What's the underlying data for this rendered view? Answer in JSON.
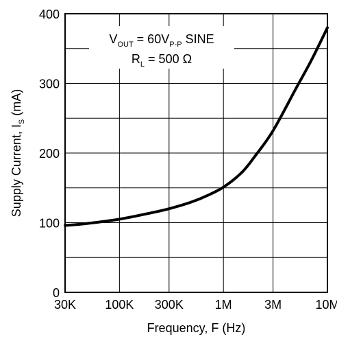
{
  "chart_data": {
    "type": "line",
    "xscale": "log",
    "xlim": [
      30000,
      10000000
    ],
    "ylim": [
      0,
      400
    ],
    "grid": true,
    "x_ticks": [
      {
        "value": 30000,
        "label": "30K"
      },
      {
        "value": 100000,
        "label": "100K"
      },
      {
        "value": 300000,
        "label": "300K"
      },
      {
        "value": 1000000,
        "label": "1M"
      },
      {
        "value": 3000000,
        "label": "3M"
      },
      {
        "value": 10000000,
        "label": "10M"
      }
    ],
    "y_ticks": [
      {
        "value": 0,
        "label": "0"
      },
      {
        "value": 100,
        "label": "100"
      },
      {
        "value": 200,
        "label": "200"
      },
      {
        "value": 300,
        "label": "300"
      },
      {
        "value": 400,
        "label": "400"
      }
    ],
    "xlabel": "Frequency, F (Hz)",
    "ylabel": {
      "main": "Supply Current, I",
      "sub": "S",
      "unit": " (mA)"
    },
    "annotation": {
      "line1": {
        "pre": "V",
        "sub": "OUT",
        "mid": " = 60V",
        "sub2": "P-P",
        "post": " SINE"
      },
      "line2": {
        "pre": "R",
        "sub": "L",
        "post": " = 500 Ω"
      }
    },
    "series": [
      {
        "x": [
          30000,
          50000,
          100000,
          200000,
          300000,
          500000,
          700000,
          1000000,
          1500000,
          2000000,
          3000000,
          5000000,
          7000000,
          10000000
        ],
        "y": [
          96,
          99,
          105,
          114,
          120,
          130,
          139,
          151,
          172,
          195,
          232,
          293,
          333,
          380
        ]
      }
    ],
    "colors": {
      "line": "#000000",
      "grid": "#000000",
      "background": "#ffffff"
    }
  }
}
